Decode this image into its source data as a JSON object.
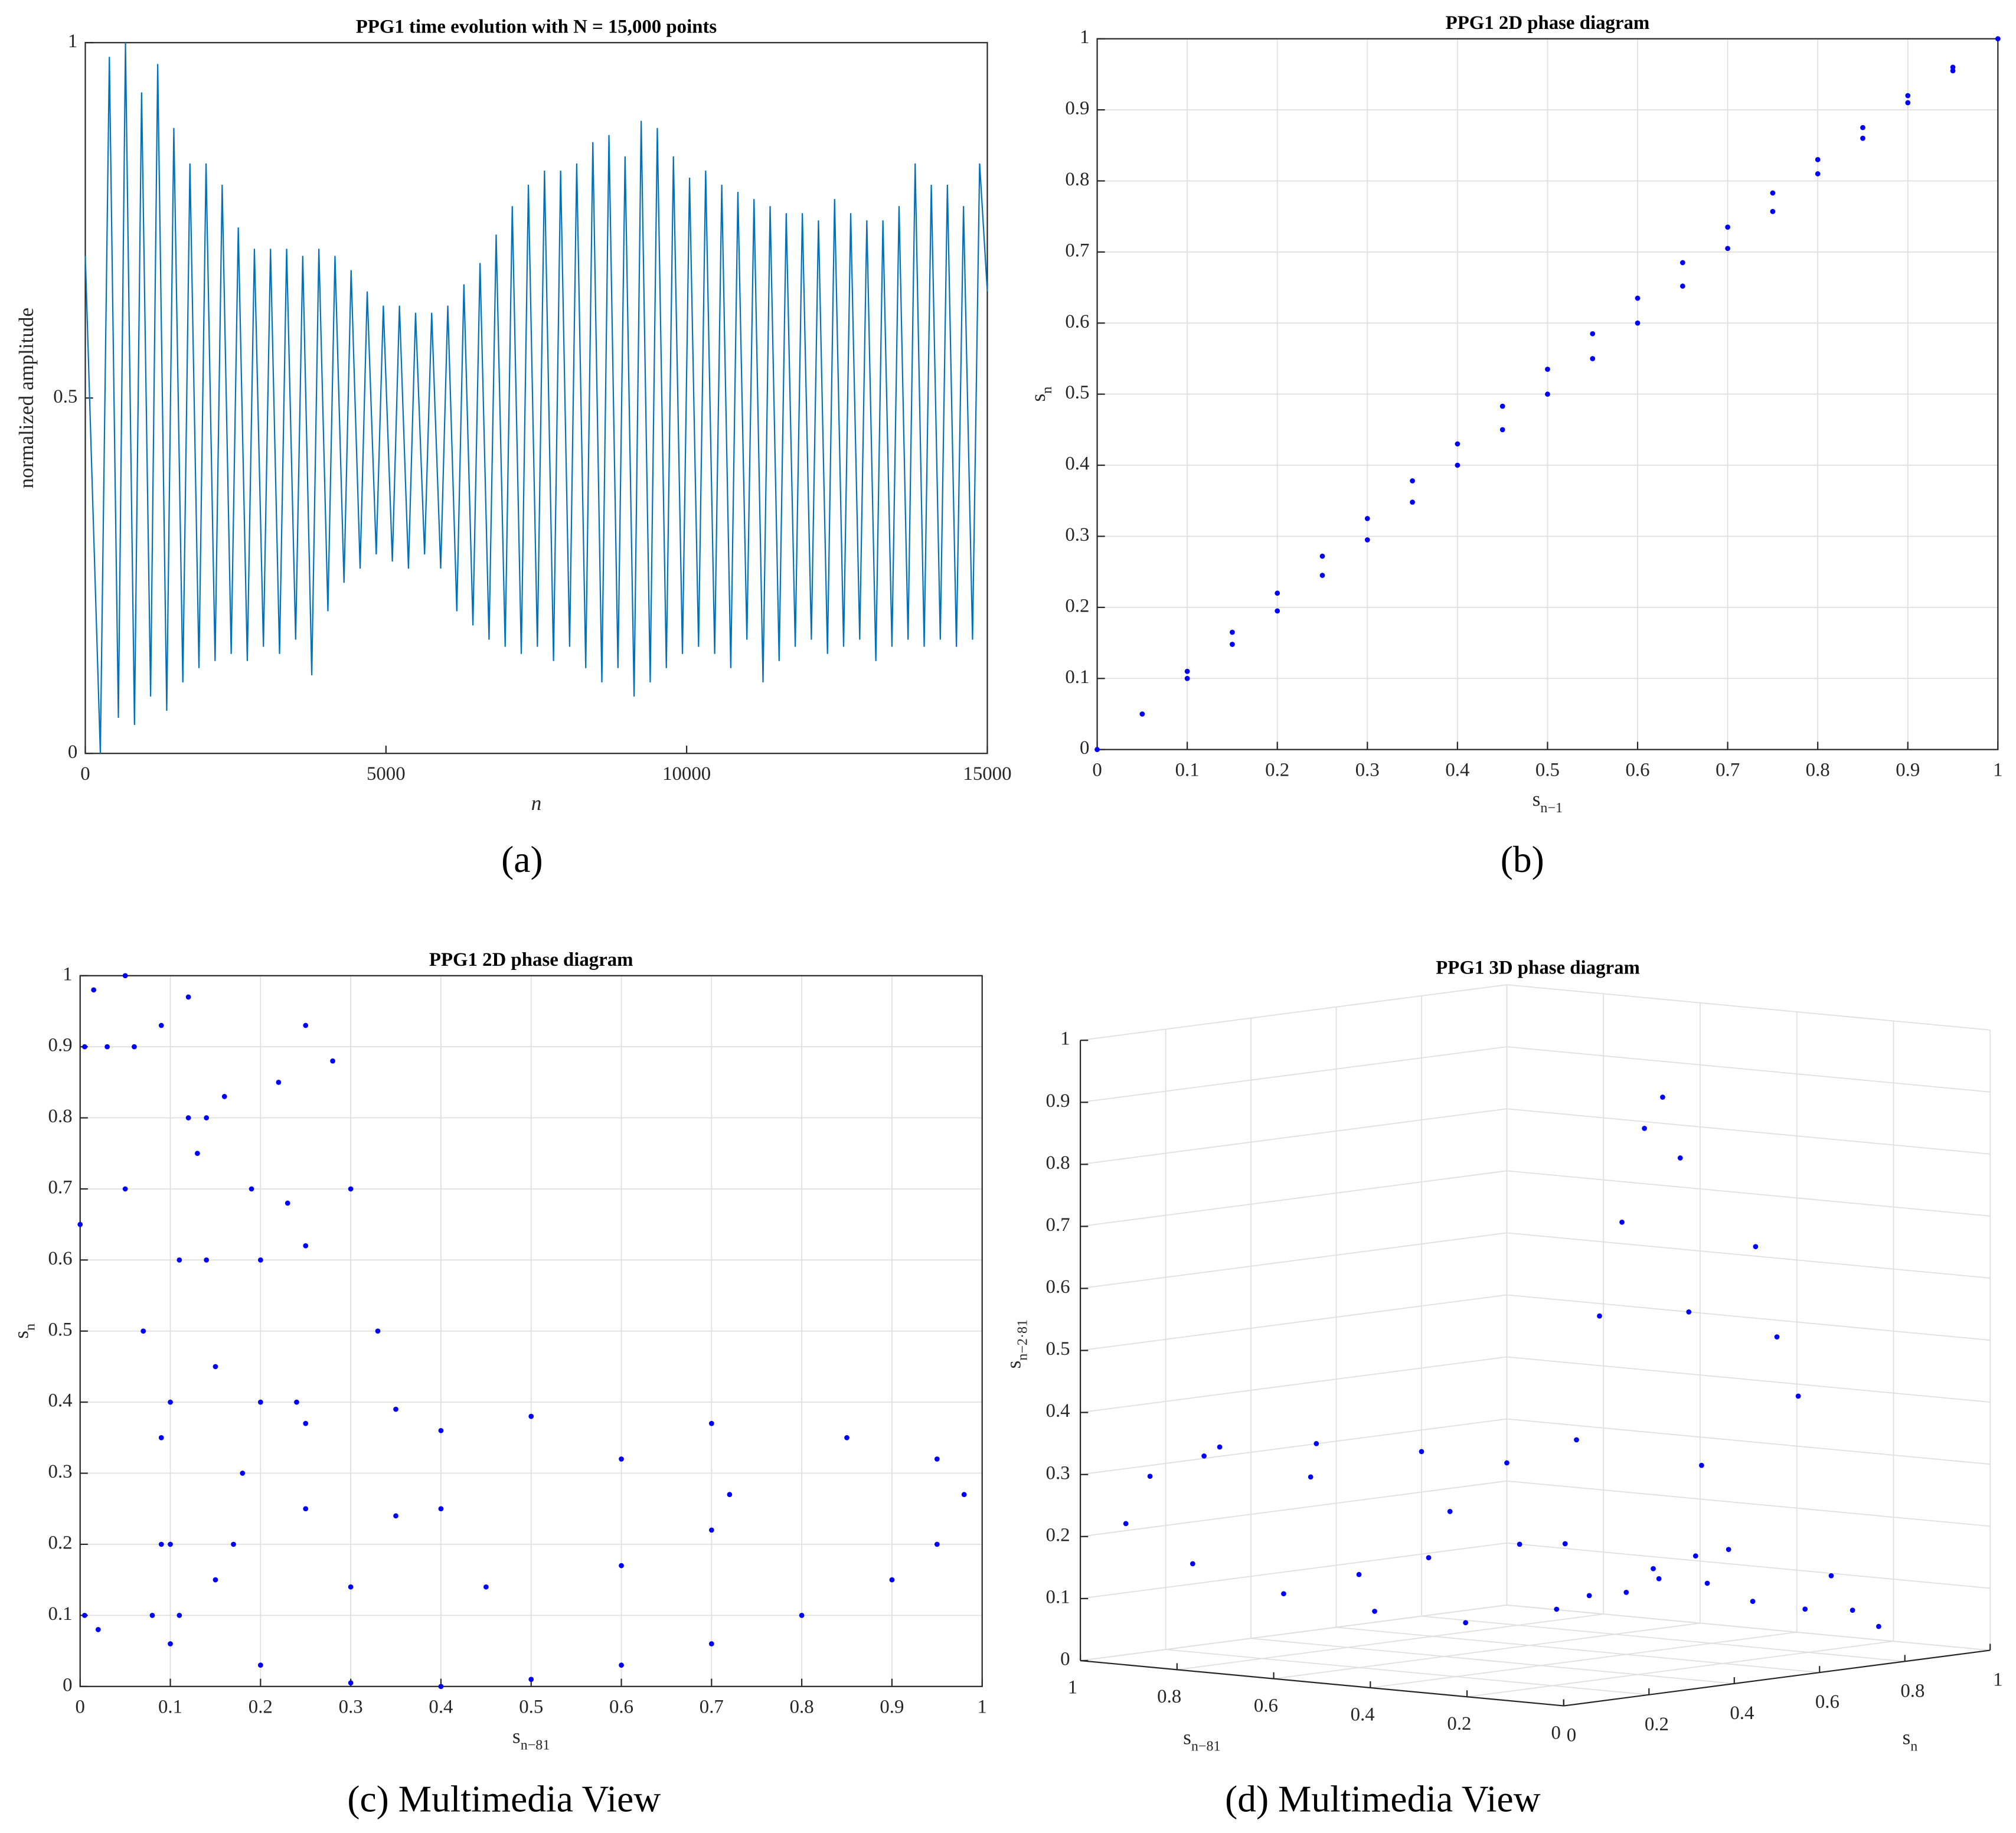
{
  "chart_data": [
    {
      "type": "line",
      "title": "PPG1 time evolution with N = 15,000 points",
      "caption": "(a)",
      "xlabel": "n",
      "ylabel": "normalized amplitude",
      "color": "#0072bd",
      "grid": false,
      "xlim": [
        0,
        15000
      ],
      "xticks": [
        0,
        5000,
        10000,
        15000
      ],
      "ylim": [
        0,
        1
      ],
      "yticks": [
        0,
        0.5,
        1
      ],
      "x": [
        0,
        250,
        400,
        550,
        668,
        818,
        936,
        1086,
        1204,
        1354,
        1472,
        1622,
        1740,
        1890,
        2008,
        2158,
        2276,
        2426,
        2544,
        2694,
        2812,
        2962,
        3080,
        3230,
        3348,
        3498,
        3616,
        3766,
        3884,
        4034,
        4152,
        4302,
        4420,
        4570,
        4688,
        4838,
        4956,
        5106,
        5224,
        5374,
        5492,
        5642,
        5760,
        5910,
        6028,
        6178,
        6296,
        6446,
        6564,
        6714,
        6832,
        6982,
        7100,
        7250,
        7368,
        7518,
        7636,
        7786,
        7904,
        8054,
        8172,
        8322,
        8440,
        8590,
        8708,
        8858,
        8976,
        9126,
        9244,
        9394,
        9512,
        9662,
        9780,
        9930,
        10048,
        10198,
        10316,
        10466,
        10584,
        10734,
        10852,
        11002,
        11120,
        11270,
        11388,
        11538,
        11656,
        11806,
        11924,
        12074,
        12192,
        12342,
        12460,
        12610,
        12728,
        12878,
        12996,
        13146,
        13264,
        13414,
        13532,
        13682,
        13800,
        13950,
        14068,
        14218,
        14336,
        14486,
        14604,
        14754,
        14872,
        15000
      ],
      "values": [
        0.7,
        0,
        0.98,
        0.05,
        1.0,
        0.04,
        0.93,
        0.08,
        0.97,
        0.06,
        0.88,
        0.1,
        0.83,
        0.12,
        0.83,
        0.13,
        0.8,
        0.14,
        0.74,
        0.13,
        0.71,
        0.15,
        0.71,
        0.14,
        0.71,
        0.16,
        0.7,
        0.11,
        0.71,
        0.2,
        0.7,
        0.24,
        0.68,
        0.26,
        0.65,
        0.28,
        0.63,
        0.27,
        0.63,
        0.26,
        0.62,
        0.28,
        0.62,
        0.26,
        0.63,
        0.2,
        0.66,
        0.18,
        0.69,
        0.16,
        0.73,
        0.15,
        0.77,
        0.14,
        0.8,
        0.15,
        0.82,
        0.13,
        0.82,
        0.15,
        0.83,
        0.12,
        0.86,
        0.1,
        0.87,
        0.12,
        0.84,
        0.08,
        0.89,
        0.1,
        0.88,
        0.12,
        0.84,
        0.14,
        0.81,
        0.15,
        0.82,
        0.14,
        0.8,
        0.12,
        0.79,
        0.16,
        0.78,
        0.1,
        0.77,
        0.13,
        0.76,
        0.15,
        0.76,
        0.16,
        0.75,
        0.14,
        0.78,
        0.15,
        0.76,
        0.16,
        0.75,
        0.13,
        0.75,
        0.15,
        0.77,
        0.16,
        0.83,
        0.15,
        0.8,
        0.16,
        0.8,
        0.15,
        0.77,
        0.16,
        0.83,
        0.65
      ]
    },
    {
      "type": "scatter",
      "title": "PPG1 2D phase diagram",
      "caption": "(b)",
      "xlabel": {
        "base": "s",
        "sub": "n−1"
      },
      "ylabel": {
        "base": "s",
        "sub": "n"
      },
      "color": "#0000ff",
      "grid": true,
      "xlim": [
        0,
        1
      ],
      "xticks": [
        0,
        0.1,
        0.2,
        0.3,
        0.4,
        0.5,
        0.6,
        0.7,
        0.8,
        0.9,
        1
      ],
      "ylim": [
        0,
        1
      ],
      "yticks": [
        0,
        0.1,
        0.2,
        0.3,
        0.4,
        0.5,
        0.6,
        0.7,
        0.8,
        0.9,
        1
      ],
      "x": [
        0,
        0.05,
        0.1,
        0.15,
        0.2,
        0.25,
        0.3,
        0.35,
        0.4,
        0.45,
        0.5,
        0.55,
        0.6,
        0.65,
        0.7,
        0.75,
        0.8,
        0.85,
        0.9,
        0.95,
        0.1,
        0.15,
        0.2,
        0.25,
        0.3,
        0.35,
        0.4,
        0.45,
        0.5,
        0.55,
        0.6,
        0.65,
        0.7,
        0.75,
        0.8,
        0.85,
        0.9,
        0.95,
        1
      ],
      "values": [
        0,
        0.05,
        0.1,
        0.148,
        0.195,
        0.245,
        0.295,
        0.348,
        0.4,
        0.45,
        0.5,
        0.55,
        0.6,
        0.652,
        0.705,
        0.757,
        0.81,
        0.86,
        0.91,
        0.955,
        0.11,
        0.165,
        0.22,
        0.272,
        0.325,
        0.378,
        0.43,
        0.483,
        0.535,
        0.585,
        0.635,
        0.685,
        0.735,
        0.783,
        0.83,
        0.875,
        0.92,
        0.96,
        1
      ]
    },
    {
      "type": "scatter",
      "title": "PPG1 2D phase diagram",
      "caption": "(c) Multimedia View",
      "xlabel": {
        "base": "s",
        "sub": "n−81"
      },
      "ylabel": {
        "base": "s",
        "sub": "n"
      },
      "color": "#0000ff",
      "grid": true,
      "xlim": [
        0,
        1
      ],
      "xticks": [
        0,
        0.1,
        0.2,
        0.3,
        0.4,
        0.5,
        0.6,
        0.7,
        0.8,
        0.9,
        1
      ],
      "ylim": [
        0,
        1
      ],
      "yticks": [
        0,
        0.1,
        0.2,
        0.3,
        0.4,
        0.5,
        0.6,
        0.7,
        0.8,
        0.9,
        1
      ],
      "x": [
        0.0,
        0.005,
        0.015,
        0.03,
        0.05,
        0.07,
        0.09,
        0.1,
        0.11,
        0.005,
        0.02,
        0.1,
        0.2,
        0.3,
        0.4,
        0.5,
        0.6,
        0.7,
        0.8,
        0.9,
        0.95,
        0.98,
        0.95,
        0.85,
        0.7,
        0.5,
        0.35,
        0.2,
        0.15,
        0.14,
        0.13,
        0.12,
        0.11,
        0.1,
        0.09,
        0.08,
        0.2,
        0.22,
        0.25,
        0.28,
        0.3,
        0.33,
        0.15,
        0.3,
        0.45,
        0.6,
        0.7,
        0.72,
        0.6,
        0.4,
        0.25,
        0.18,
        0.17,
        0.25,
        0.35,
        0.4,
        0.05,
        0.06,
        0.09,
        0.12,
        0.14,
        0.16,
        0.19,
        0.23,
        0.25,
        0.24
      ],
      "values": [
        0.65,
        0.9,
        0.98,
        0.9,
        0.7,
        0.5,
        0.35,
        0.2,
        0.1,
        0.1,
        0.08,
        0.06,
        0.03,
        0.005,
        0.0,
        0.01,
        0.03,
        0.06,
        0.1,
        0.15,
        0.2,
        0.27,
        0.32,
        0.35,
        0.37,
        0.38,
        0.39,
        0.4,
        0.45,
        0.6,
        0.75,
        0.8,
        0.6,
        0.4,
        0.2,
        0.1,
        0.6,
        0.85,
        0.93,
        0.88,
        0.7,
        0.5,
        0.15,
        0.14,
        0.14,
        0.17,
        0.22,
        0.27,
        0.32,
        0.36,
        0.37,
        0.3,
        0.2,
        0.25,
        0.24,
        0.25,
        1.0,
        0.9,
        0.93,
        0.97,
        0.8,
        0.83,
        0.7,
        0.68,
        0.62,
        0.4
      ]
    },
    {
      "type": "scatter3d",
      "title": "PPG1 3D phase diagram",
      "caption": "(d) Multimedia View",
      "xlabel": {
        "base": "s",
        "sub": "n−81"
      },
      "ylabel": {
        "base": "s",
        "sub": "n"
      },
      "zlabel": {
        "base": "s",
        "sub": "n−2·81"
      },
      "color": "#0000ff",
      "grid": true,
      "xlim": [
        0,
        1
      ],
      "xticks": [
        0,
        0.2,
        0.4,
        0.6,
        0.8,
        1
      ],
      "ylim": [
        0,
        1
      ],
      "yticks": [
        0,
        0.2,
        0.4,
        0.6,
        0.8,
        1
      ],
      "zlim": [
        0,
        1
      ],
      "zticks": [
        0,
        0.1,
        0.2,
        0.3,
        0.4,
        0.5,
        0.6,
        0.7,
        0.8,
        0.9,
        1
      ],
      "x": [
        0.95,
        0.9,
        0.8,
        0.7,
        0.6,
        0.5,
        0.4,
        0.3,
        0.35,
        0.5,
        0.7,
        0.85,
        0.9,
        0.8,
        0.6,
        0.4,
        0.25,
        0.15,
        0.12,
        0.1,
        0.08,
        0.06,
        0.05,
        0.05,
        0.05,
        0.08,
        0.1,
        0.05,
        0.03,
        0.02,
        0.01,
        0.02,
        0.1,
        0.2,
        0.3,
        0.0,
        0.0,
        0.0,
        0.4,
        0.5,
        0.6
      ],
      "y": [
        0.05,
        0.15,
        0.25,
        0.35,
        0.45,
        0.55,
        0.6,
        0.55,
        0.4,
        0.3,
        0.2,
        0.12,
        0.05,
        0.1,
        0.1,
        0.12,
        0.15,
        0.2,
        0.22,
        0.25,
        0.28,
        0.3,
        0.33,
        0.35,
        0.38,
        0.4,
        0.45,
        0.5,
        0.6,
        0.7,
        0.75,
        0.65,
        0.5,
        0.45,
        0.4,
        0.45,
        0.5,
        0.55,
        0.35,
        0.25,
        0.2
      ],
      "z": [
        0.22,
        0.15,
        0.1,
        0.07,
        0.05,
        0.07,
        0.1,
        0.15,
        0.2,
        0.25,
        0.3,
        0.33,
        0.3,
        0.35,
        0.37,
        0.37,
        0.36,
        0.4,
        0.6,
        0.75,
        0.9,
        0.95,
        0.85,
        0.6,
        0.35,
        0.2,
        0.15,
        0.12,
        0.1,
        0.09,
        0.06,
        0.15,
        0.2,
        0.15,
        0.12,
        0.7,
        0.55,
        0.45,
        0.2,
        0.18,
        0.15
      ]
    }
  ]
}
